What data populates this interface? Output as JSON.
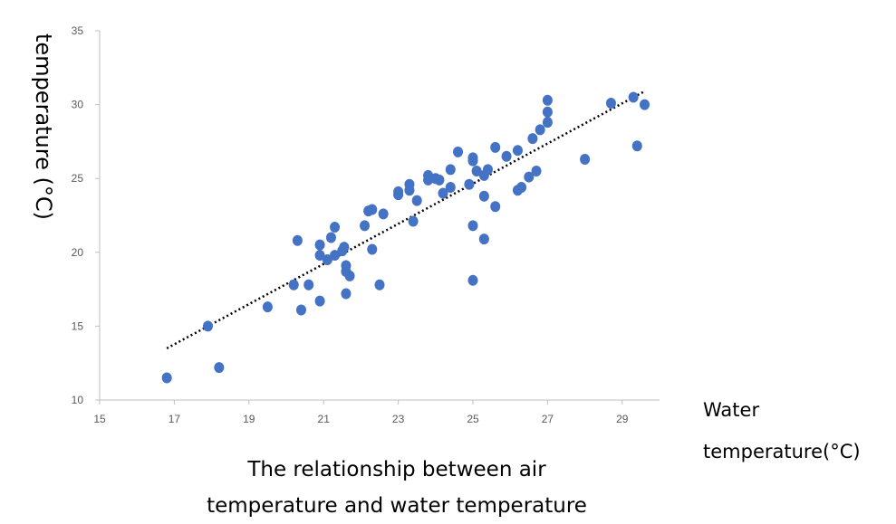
{
  "chart_data": {
    "type": "scatter",
    "ylabel": "temperature (°C)",
    "xlabel_lines": [
      "Water",
      "temperature(°C)"
    ],
    "caption_lines": [
      "The relationship between air",
      "temperature and water temperature"
    ],
    "xlim": [
      15,
      30
    ],
    "ylim": [
      10,
      35
    ],
    "x_ticks": [
      15,
      17,
      19,
      21,
      23,
      25,
      27,
      29
    ],
    "y_ticks": [
      10,
      15,
      20,
      25,
      30,
      35
    ],
    "grid": false,
    "trendline": {
      "style": "dotted",
      "color": "#000000",
      "from": [
        16.8,
        13.5
      ],
      "to": [
        29.6,
        30.9
      ]
    },
    "colors": {
      "points": "#4472C4",
      "axis": "#bfbfbf",
      "trendline": "#000000"
    },
    "points": [
      [
        16.8,
        11.5
      ],
      [
        17.9,
        15.0
      ],
      [
        18.2,
        12.2
      ],
      [
        19.5,
        16.3
      ],
      [
        20.2,
        17.8
      ],
      [
        20.3,
        20.8
      ],
      [
        20.4,
        16.1
      ],
      [
        20.6,
        17.8
      ],
      [
        20.9,
        16.7
      ],
      [
        20.9,
        19.8
      ],
      [
        20.9,
        20.5
      ],
      [
        21.1,
        19.5
      ],
      [
        21.2,
        21.0
      ],
      [
        21.3,
        21.7
      ],
      [
        21.3,
        19.8
      ],
      [
        21.5,
        20.1
      ],
      [
        21.55,
        20.35
      ],
      [
        21.6,
        19.1
      ],
      [
        21.6,
        18.7
      ],
      [
        21.6,
        17.2
      ],
      [
        21.7,
        18.4
      ],
      [
        22.1,
        21.8
      ],
      [
        22.2,
        22.8
      ],
      [
        22.3,
        22.9
      ],
      [
        22.3,
        20.2
      ],
      [
        22.5,
        17.8
      ],
      [
        22.6,
        22.6
      ],
      [
        23.0,
        23.9
      ],
      [
        23.0,
        24.1
      ],
      [
        23.3,
        24.2
      ],
      [
        23.3,
        24.6
      ],
      [
        23.4,
        22.1
      ],
      [
        23.5,
        23.5
      ],
      [
        23.8,
        24.9
      ],
      [
        23.8,
        25.2
      ],
      [
        24.0,
        25.0
      ],
      [
        24.1,
        24.9
      ],
      [
        24.2,
        24.0
      ],
      [
        24.4,
        24.4
      ],
      [
        24.4,
        25.6
      ],
      [
        24.6,
        26.8
      ],
      [
        24.9,
        24.6
      ],
      [
        25.0,
        21.8
      ],
      [
        25.0,
        18.1
      ],
      [
        25.0,
        26.4
      ],
      [
        25.0,
        26.2
      ],
      [
        25.1,
        25.5
      ],
      [
        25.3,
        23.8
      ],
      [
        25.3,
        20.9
      ],
      [
        25.3,
        25.2
      ],
      [
        25.4,
        25.6
      ],
      [
        25.6,
        23.1
      ],
      [
        25.6,
        27.1
      ],
      [
        25.9,
        26.5
      ],
      [
        26.2,
        26.9
      ],
      [
        26.2,
        24.2
      ],
      [
        26.3,
        24.4
      ],
      [
        26.5,
        25.1
      ],
      [
        26.6,
        27.7
      ],
      [
        26.7,
        25.5
      ],
      [
        26.8,
        28.3
      ],
      [
        27.0,
        28.8
      ],
      [
        27.0,
        29.5
      ],
      [
        27.0,
        30.3
      ],
      [
        28.0,
        26.3
      ],
      [
        28.7,
        30.1
      ],
      [
        29.3,
        30.5
      ],
      [
        29.4,
        27.2
      ],
      [
        29.6,
        30.0
      ]
    ]
  }
}
